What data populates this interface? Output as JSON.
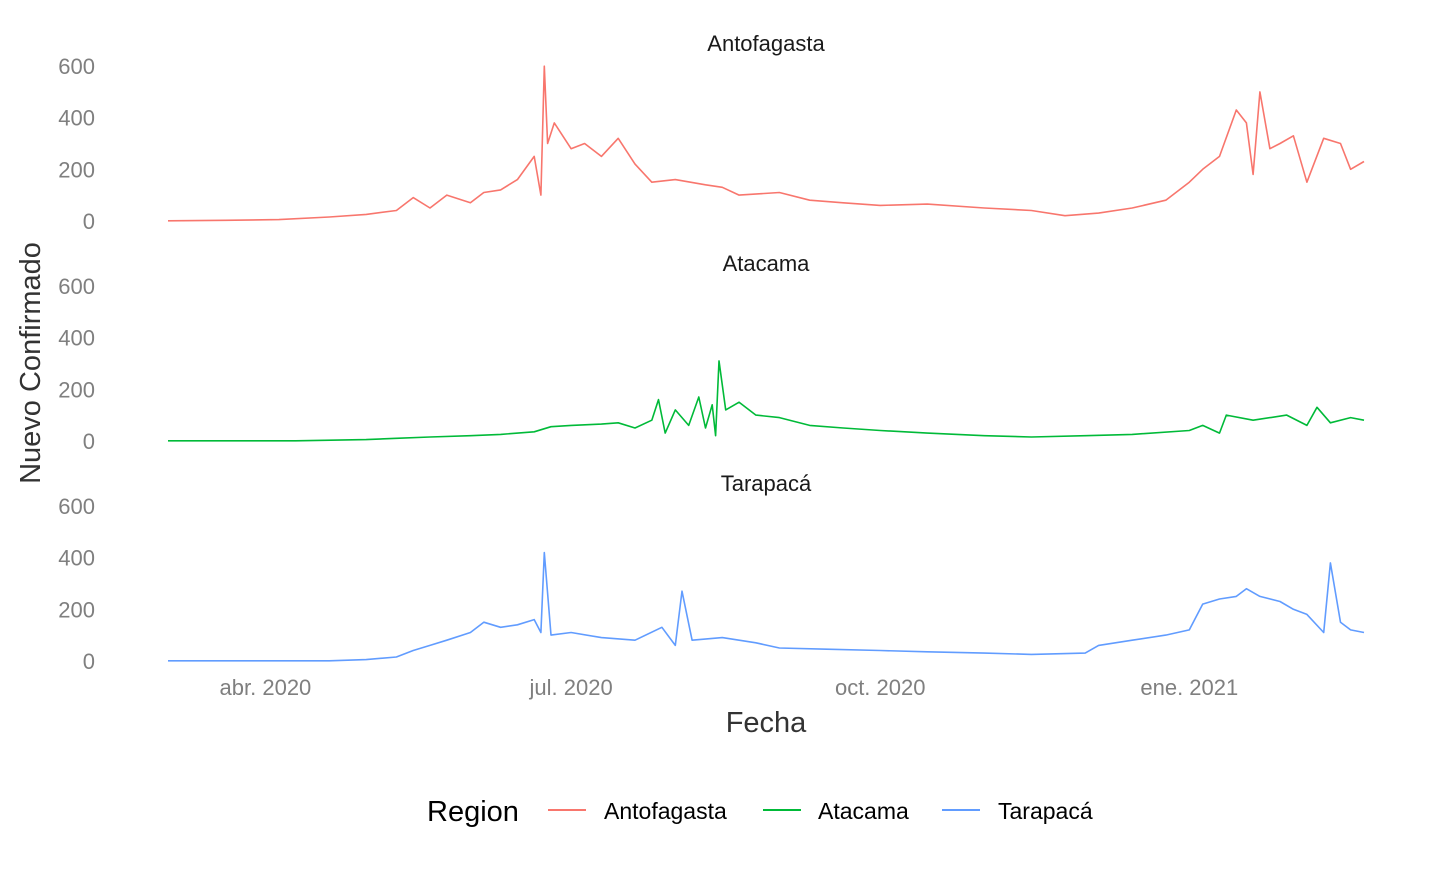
{
  "chart_data": {
    "type": "line",
    "facet_by": "Region",
    "xlabel": "Fecha",
    "ylabel": "Nuevo Confirmado",
    "legend": {
      "title": "Region",
      "position": "bottom"
    },
    "x_range": [
      "2020-03-03",
      "2021-02-22"
    ],
    "x_ticks": [
      {
        "date": "2020-04-01",
        "label": "abr. 2020"
      },
      {
        "date": "2020-07-01",
        "label": "jul. 2020"
      },
      {
        "date": "2020-10-01",
        "label": "oct. 2020"
      },
      {
        "date": "2021-01-01",
        "label": "ene. 2021"
      }
    ],
    "y_ticks": [
      0,
      200,
      400,
      600
    ],
    "ylim": [
      -20,
      620
    ],
    "grid": false,
    "panels": [
      {
        "name": "Antofagasta",
        "color": "#F8766D",
        "points": [
          [
            "2020-03-03",
            0
          ],
          [
            "2020-03-20",
            2
          ],
          [
            "2020-04-05",
            5
          ],
          [
            "2020-04-20",
            15
          ],
          [
            "2020-05-01",
            25
          ],
          [
            "2020-05-10",
            40
          ],
          [
            "2020-05-15",
            90
          ],
          [
            "2020-05-20",
            50
          ],
          [
            "2020-05-25",
            100
          ],
          [
            "2020-06-01",
            70
          ],
          [
            "2020-06-05",
            110
          ],
          [
            "2020-06-10",
            120
          ],
          [
            "2020-06-15",
            160
          ],
          [
            "2020-06-20",
            250
          ],
          [
            "2020-06-22",
            100
          ],
          [
            "2020-06-23",
            600
          ],
          [
            "2020-06-24",
            300
          ],
          [
            "2020-06-26",
            380
          ],
          [
            "2020-07-01",
            280
          ],
          [
            "2020-07-05",
            300
          ],
          [
            "2020-07-10",
            250
          ],
          [
            "2020-07-15",
            320
          ],
          [
            "2020-07-20",
            220
          ],
          [
            "2020-07-25",
            150
          ],
          [
            "2020-08-01",
            160
          ],
          [
            "2020-08-10",
            140
          ],
          [
            "2020-08-15",
            130
          ],
          [
            "2020-08-20",
            100
          ],
          [
            "2020-09-01",
            110
          ],
          [
            "2020-09-10",
            80
          ],
          [
            "2020-09-20",
            70
          ],
          [
            "2020-10-01",
            60
          ],
          [
            "2020-10-15",
            65
          ],
          [
            "2020-11-01",
            50
          ],
          [
            "2020-11-15",
            40
          ],
          [
            "2020-11-25",
            20
          ],
          [
            "2020-12-05",
            30
          ],
          [
            "2020-12-15",
            50
          ],
          [
            "2020-12-25",
            80
          ],
          [
            "2021-01-01",
            150
          ],
          [
            "2021-01-05",
            200
          ],
          [
            "2021-01-10",
            250
          ],
          [
            "2021-01-15",
            430
          ],
          [
            "2021-01-18",
            380
          ],
          [
            "2021-01-20",
            180
          ],
          [
            "2021-01-22",
            500
          ],
          [
            "2021-01-25",
            280
          ],
          [
            "2021-01-28",
            300
          ],
          [
            "2021-02-01",
            330
          ],
          [
            "2021-02-05",
            150
          ],
          [
            "2021-02-10",
            320
          ],
          [
            "2021-02-15",
            300
          ],
          [
            "2021-02-18",
            200
          ],
          [
            "2021-02-22",
            230
          ]
        ]
      },
      {
        "name": "Atacama",
        "color": "#00BA38",
        "points": [
          [
            "2020-03-03",
            0
          ],
          [
            "2020-04-10",
            0
          ],
          [
            "2020-05-01",
            5
          ],
          [
            "2020-05-10",
            10
          ],
          [
            "2020-05-20",
            15
          ],
          [
            "2020-06-01",
            20
          ],
          [
            "2020-06-10",
            25
          ],
          [
            "2020-06-20",
            35
          ],
          [
            "2020-06-25",
            55
          ],
          [
            "2020-07-01",
            60
          ],
          [
            "2020-07-10",
            65
          ],
          [
            "2020-07-15",
            70
          ],
          [
            "2020-07-20",
            50
          ],
          [
            "2020-07-25",
            80
          ],
          [
            "2020-07-27",
            160
          ],
          [
            "2020-07-29",
            30
          ],
          [
            "2020-08-01",
            120
          ],
          [
            "2020-08-05",
            60
          ],
          [
            "2020-08-08",
            170
          ],
          [
            "2020-08-10",
            50
          ],
          [
            "2020-08-12",
            140
          ],
          [
            "2020-08-13",
            20
          ],
          [
            "2020-08-14",
            310
          ],
          [
            "2020-08-16",
            120
          ],
          [
            "2020-08-20",
            150
          ],
          [
            "2020-08-25",
            100
          ],
          [
            "2020-09-01",
            90
          ],
          [
            "2020-09-10",
            60
          ],
          [
            "2020-09-20",
            50
          ],
          [
            "2020-10-01",
            40
          ],
          [
            "2020-10-15",
            30
          ],
          [
            "2020-11-01",
            20
          ],
          [
            "2020-11-15",
            15
          ],
          [
            "2020-12-01",
            20
          ],
          [
            "2020-12-15",
            25
          ],
          [
            "2021-01-01",
            40
          ],
          [
            "2021-01-05",
            60
          ],
          [
            "2021-01-10",
            30
          ],
          [
            "2021-01-12",
            100
          ],
          [
            "2021-01-20",
            80
          ],
          [
            "2021-01-30",
            100
          ],
          [
            "2021-02-05",
            60
          ],
          [
            "2021-02-08",
            130
          ],
          [
            "2021-02-12",
            70
          ],
          [
            "2021-02-18",
            90
          ],
          [
            "2021-02-22",
            80
          ]
        ]
      },
      {
        "name": "Tarapacá",
        "color": "#619CFF",
        "points": [
          [
            "2020-03-03",
            0
          ],
          [
            "2020-04-20",
            0
          ],
          [
            "2020-05-01",
            5
          ],
          [
            "2020-05-10",
            15
          ],
          [
            "2020-05-15",
            40
          ],
          [
            "2020-05-20",
            60
          ],
          [
            "2020-05-25",
            80
          ],
          [
            "2020-06-01",
            110
          ],
          [
            "2020-06-05",
            150
          ],
          [
            "2020-06-10",
            130
          ],
          [
            "2020-06-15",
            140
          ],
          [
            "2020-06-20",
            160
          ],
          [
            "2020-06-22",
            110
          ],
          [
            "2020-06-23",
            420
          ],
          [
            "2020-06-25",
            100
          ],
          [
            "2020-07-01",
            110
          ],
          [
            "2020-07-10",
            90
          ],
          [
            "2020-07-20",
            80
          ],
          [
            "2020-07-28",
            130
          ],
          [
            "2020-08-01",
            60
          ],
          [
            "2020-08-03",
            270
          ],
          [
            "2020-08-06",
            80
          ],
          [
            "2020-08-15",
            90
          ],
          [
            "2020-08-25",
            70
          ],
          [
            "2020-09-01",
            50
          ],
          [
            "2020-09-15",
            45
          ],
          [
            "2020-10-01",
            40
          ],
          [
            "2020-10-15",
            35
          ],
          [
            "2020-11-01",
            30
          ],
          [
            "2020-11-15",
            25
          ],
          [
            "2020-12-01",
            30
          ],
          [
            "2020-12-05",
            60
          ],
          [
            "2020-12-15",
            80
          ],
          [
            "2020-12-25",
            100
          ],
          [
            "2021-01-01",
            120
          ],
          [
            "2021-01-05",
            220
          ],
          [
            "2021-01-10",
            240
          ],
          [
            "2021-01-15",
            250
          ],
          [
            "2021-01-18",
            280
          ],
          [
            "2021-01-22",
            250
          ],
          [
            "2021-01-28",
            230
          ],
          [
            "2021-02-01",
            200
          ],
          [
            "2021-02-05",
            180
          ],
          [
            "2021-02-10",
            110
          ],
          [
            "2021-02-12",
            380
          ],
          [
            "2021-02-15",
            150
          ],
          [
            "2021-02-18",
            120
          ],
          [
            "2021-02-22",
            110
          ]
        ]
      }
    ]
  }
}
